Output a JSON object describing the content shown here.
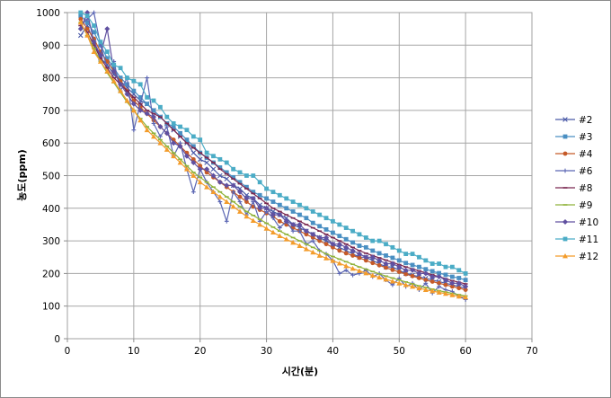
{
  "chart_data": {
    "type": "line",
    "title": "",
    "xlabel": "시간(분)",
    "ylabel": "농도(ppm)",
    "xlim": [
      0,
      70
    ],
    "ylim": [
      0,
      1000
    ],
    "xticks": [
      0,
      10,
      20,
      30,
      40,
      50,
      60,
      70
    ],
    "yticks": [
      0,
      100,
      200,
      300,
      400,
      500,
      600,
      700,
      800,
      900,
      1000
    ],
    "grid": true,
    "legend_position": "right",
    "x": [
      2,
      3,
      4,
      5,
      6,
      7,
      8,
      9,
      10,
      11,
      12,
      13,
      14,
      15,
      16,
      17,
      18,
      19,
      20,
      21,
      22,
      23,
      24,
      25,
      26,
      27,
      28,
      29,
      30,
      31,
      32,
      33,
      34,
      35,
      36,
      37,
      38,
      39,
      40,
      41,
      42,
      43,
      44,
      45,
      46,
      47,
      48,
      49,
      50,
      51,
      52,
      53,
      54,
      55,
      56,
      57,
      58,
      59,
      60
    ],
    "series": [
      {
        "name": "#2",
        "color": "#4a5aa8",
        "marker": "x",
        "values": [
          930,
          960,
          910,
          860,
          840,
          810,
          790,
          770,
          750,
          730,
          720,
          700,
          680,
          660,
          640,
          620,
          600,
          570,
          550,
          540,
          520,
          500,
          490,
          470,
          460,
          440,
          430,
          410,
          400,
          390,
          380,
          370,
          350,
          340,
          330,
          320,
          310,
          300,
          290,
          280,
          270,
          260,
          250,
          250,
          240,
          230,
          220,
          220,
          210,
          200,
          195,
          190,
          185,
          180,
          175,
          170,
          165,
          160,
          155
        ]
      },
      {
        "name": "#3",
        "color": "#4a8fc2",
        "marker": "square",
        "values": [
          990,
          970,
          940,
          900,
          860,
          830,
          800,
          780,
          760,
          740,
          720,
          700,
          680,
          660,
          650,
          630,
          610,
          590,
          570,
          555,
          540,
          525,
          510,
          495,
          480,
          465,
          450,
          440,
          430,
          420,
          410,
          400,
          390,
          380,
          370,
          355,
          345,
          335,
          325,
          315,
          305,
          295,
          285,
          280,
          270,
          262,
          255,
          248,
          240,
          232,
          226,
          220,
          213,
          207,
          201,
          196,
          190,
          186,
          180
        ]
      },
      {
        "name": "#4",
        "color": "#c55a28",
        "marker": "circle",
        "values": [
          980,
          950,
          920,
          880,
          850,
          820,
          790,
          760,
          730,
          710,
          690,
          670,
          650,
          630,
          610,
          590,
          570,
          550,
          530,
          510,
          495,
          480,
          465,
          450,
          435,
          420,
          405,
          395,
          385,
          375,
          360,
          350,
          340,
          330,
          320,
          310,
          300,
          290,
          280,
          270,
          262,
          255,
          248,
          240,
          232,
          225,
          218,
          211,
          205,
          198,
          192,
          186,
          180,
          175,
          170,
          165,
          160,
          155,
          150
        ]
      },
      {
        "name": "#6",
        "color": "#5b66b3",
        "marker": "plus",
        "values": [
          960,
          980,
          1000,
          900,
          830,
          850,
          760,
          800,
          640,
          720,
          800,
          660,
          620,
          650,
          560,
          600,
          520,
          450,
          520,
          480,
          450,
          420,
          360,
          450,
          420,
          380,
          420,
          360,
          390,
          370,
          340,
          360,
          330,
          330,
          290,
          300,
          270,
          260,
          240,
          200,
          210,
          195,
          200,
          210,
          190,
          200,
          180,
          165,
          185,
          160,
          170,
          150,
          170,
          140,
          160,
          150,
          145,
          130,
          120
        ]
      },
      {
        "name": "#8",
        "color": "#7a2850",
        "marker": "dash",
        "values": [
          960,
          940,
          900,
          860,
          830,
          800,
          780,
          760,
          740,
          720,
          700,
          690,
          680,
          660,
          640,
          620,
          600,
          585,
          570,
          555,
          540,
          520,
          505,
          490,
          475,
          460,
          445,
          430,
          415,
          400,
          390,
          380,
          370,
          360,
          350,
          340,
          330,
          320,
          310,
          300,
          290,
          280,
          270,
          262,
          255,
          248,
          241,
          234,
          227,
          220,
          214,
          208,
          202,
          196,
          190,
          184,
          178,
          173,
          168
        ]
      },
      {
        "name": "#9",
        "color": "#8fb23a",
        "marker": "dash",
        "values": [
          970,
          930,
          890,
          850,
          815,
          785,
          755,
          725,
          700,
          675,
          650,
          630,
          610,
          590,
          570,
          550,
          530,
          510,
          495,
          480,
          465,
          450,
          435,
          420,
          405,
          390,
          378,
          366,
          354,
          342,
          330,
          320,
          310,
          300,
          290,
          280,
          270,
          260,
          252,
          244,
          236,
          228,
          220,
          213,
          206,
          199,
          192,
          186,
          180,
          174,
          168,
          162,
          157,
          152,
          147,
          143,
          139,
          135,
          131
        ]
      },
      {
        "name": "#10",
        "color": "#6050a0",
        "marker": "diamond",
        "values": [
          950,
          1000,
          910,
          870,
          950,
          820,
          780,
          750,
          720,
          700,
          690,
          680,
          650,
          630,
          600,
          590,
          560,
          540,
          520,
          520,
          500,
          480,
          470,
          470,
          450,
          430,
          430,
          400,
          400,
          380,
          380,
          360,
          350,
          350,
          330,
          320,
          310,
          310,
          290,
          290,
          280,
          270,
          260,
          250,
          250,
          240,
          230,
          230,
          220,
          210,
          210,
          200,
          200,
          190,
          190,
          180,
          170,
          170,
          160
        ]
      },
      {
        "name": "#11",
        "color": "#4bacc6",
        "marker": "square",
        "values": [
          1000,
          990,
          960,
          910,
          880,
          840,
          830,
          800,
          790,
          780,
          740,
          730,
          710,
          680,
          660,
          650,
          640,
          620,
          610,
          570,
          560,
          550,
          540,
          520,
          510,
          500,
          500,
          480,
          460,
          450,
          440,
          430,
          420,
          410,
          400,
          390,
          380,
          370,
          360,
          350,
          340,
          330,
          320,
          310,
          300,
          300,
          290,
          280,
          270,
          260,
          260,
          250,
          240,
          230,
          230,
          220,
          220,
          210,
          200
        ]
      },
      {
        "name": "#12",
        "color": "#f39c2b",
        "marker": "triangle",
        "values": [
          970,
          930,
          880,
          850,
          820,
          790,
          760,
          730,
          700,
          670,
          640,
          620,
          600,
          580,
          560,
          540,
          520,
          500,
          480,
          465,
          450,
          435,
          420,
          405,
          390,
          375,
          362,
          350,
          338,
          326,
          315,
          305,
          295,
          285,
          275,
          265,
          255,
          247,
          239,
          231,
          223,
          215,
          208,
          201,
          194,
          188,
          182,
          176,
          170,
          165,
          160,
          155,
          150,
          146,
          142,
          138,
          134,
          130,
          127
        ]
      }
    ]
  }
}
